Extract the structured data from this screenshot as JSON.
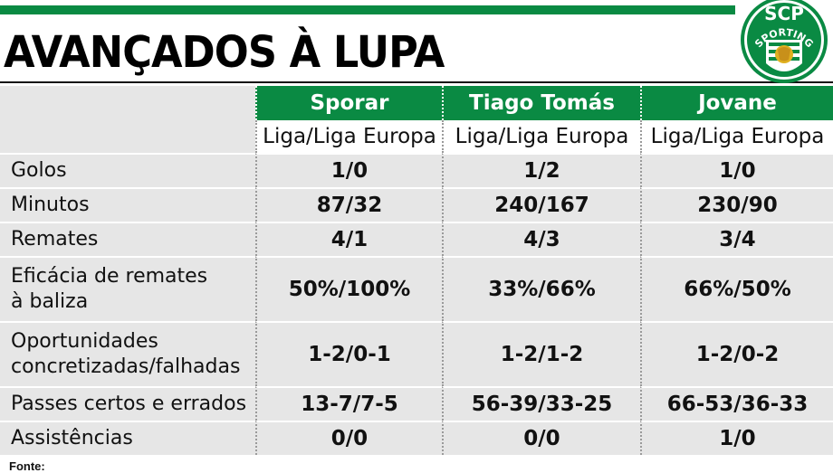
{
  "title": "AVANÇADOS À LUPA",
  "logo": {
    "icon": "sporting-cp-crest-icon",
    "text_top": "SCP",
    "text_ring": "SPORTING",
    "color": "#0a8a43"
  },
  "colors": {
    "green": "#0a8a43",
    "row_gray": "#e6e6e6"
  },
  "players": [
    "Sporar",
    "Tiago Tomás",
    "Jovane"
  ],
  "competition_label": "Liga/Liga Europa",
  "rows": [
    {
      "label": [
        "Golos"
      ],
      "values": [
        "1/0",
        "1/2",
        "1/0"
      ]
    },
    {
      "label": [
        "Minutos"
      ],
      "values": [
        "87/32",
        "240/167",
        "230/90"
      ]
    },
    {
      "label": [
        "Remates"
      ],
      "values": [
        "4/1",
        "4/3",
        "3/4"
      ]
    },
    {
      "label": [
        "Eficácia de remates",
        "à baliza"
      ],
      "values": [
        "50%/100%",
        "33%/66%",
        "66%/50%"
      ]
    },
    {
      "label": [
        "Oportunidades",
        "concretizadas/falhadas"
      ],
      "values": [
        "1-2/0-1",
        "1-2/1-2",
        "1-2/0-2"
      ]
    },
    {
      "label": [
        "Passes certos e errados"
      ],
      "values": [
        "13-7/7-5",
        "56-39/33-25",
        "66-53/36-33"
      ]
    },
    {
      "label": [
        "Assistências"
      ],
      "values": [
        "0/0",
        "0/0",
        "1/0"
      ]
    }
  ],
  "footer": "Fonte:"
}
